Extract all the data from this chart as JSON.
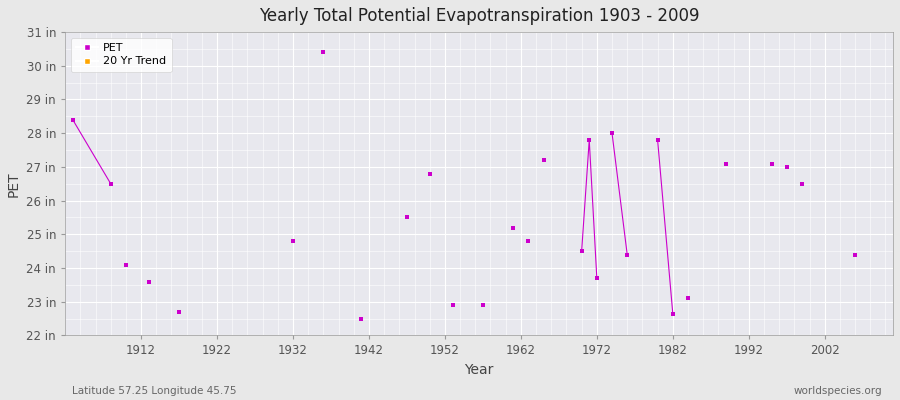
{
  "title": "Yearly Total Potential Evapotranspiration 1903 - 2009",
  "xlabel": "Year",
  "ylabel": "PET",
  "background_color": "#e8e8e8",
  "plot_bg_color": "#e8e8ee",
  "grid_color": "#ffffff",
  "line_color": "#cc00cc",
  "marker_color": "#cc00cc",
  "trend_color": "#ffa500",
  "ylim": [
    22,
    31
  ],
  "ytick_labels": [
    "22 in",
    "23 in",
    "24 in",
    "25 in",
    "26 in",
    "27 in",
    "28 in",
    "29 in",
    "30 in",
    "31 in"
  ],
  "ytick_values": [
    22,
    23,
    24,
    25,
    26,
    27,
    28,
    29,
    30,
    31
  ],
  "xlim": [
    1902,
    2011
  ],
  "xtick_values": [
    1912,
    1922,
    1932,
    1942,
    1952,
    1962,
    1972,
    1982,
    1992,
    2002
  ],
  "pet_data": [
    [
      1903,
      28.4
    ],
    [
      1908,
      26.5
    ],
    [
      1910,
      24.1
    ],
    [
      1913,
      23.6
    ],
    [
      1917,
      22.7
    ],
    [
      1932,
      24.8
    ],
    [
      1936,
      30.4
    ],
    [
      1941,
      22.5
    ],
    [
      1947,
      25.5
    ],
    [
      1950,
      26.8
    ],
    [
      1953,
      22.9
    ],
    [
      1957,
      22.9
    ],
    [
      1961,
      25.2
    ],
    [
      1963,
      24.8
    ],
    [
      1965,
      27.2
    ],
    [
      1970,
      24.5
    ],
    [
      1971,
      27.8
    ],
    [
      1972,
      23.7
    ],
    [
      1974,
      28.0
    ],
    [
      1976,
      24.4
    ],
    [
      1980,
      27.8
    ],
    [
      1982,
      22.65
    ],
    [
      1984,
      23.1
    ],
    [
      1989,
      27.1
    ],
    [
      1995,
      27.1
    ],
    [
      1997,
      27.0
    ],
    [
      1999,
      26.5
    ],
    [
      2006,
      24.4
    ]
  ],
  "connected_segments": [
    [
      [
        1903,
        28.4
      ],
      [
        1908,
        26.5
      ]
    ],
    [
      [
        1970,
        24.5
      ],
      [
        1971,
        27.8
      ],
      [
        1972,
        23.7
      ]
    ],
    [
      [
        1974,
        28.0
      ],
      [
        1976,
        24.4
      ]
    ],
    [
      [
        1980,
        27.8
      ],
      [
        1982,
        22.65
      ]
    ]
  ],
  "footer_left": "Latitude 57.25 Longitude 45.75",
  "footer_right": "worldspecies.org",
  "legend_entries": [
    "PET",
    "20 Yr Trend"
  ]
}
